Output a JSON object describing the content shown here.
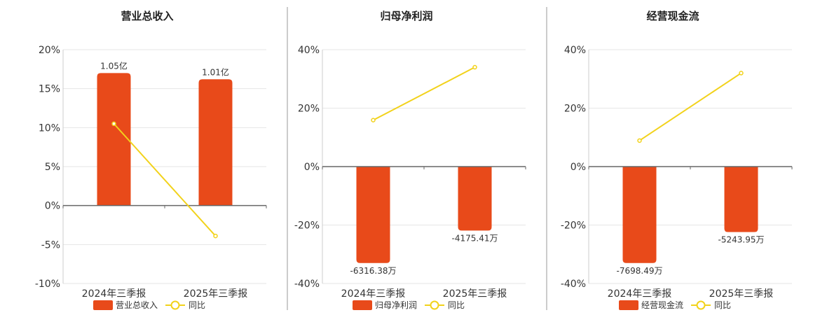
{
  "colors": {
    "bar": "#E84A1A",
    "line": "#F2D21B",
    "grid": "#e6e6e6",
    "axis": "#666666",
    "divider": "#999999"
  },
  "legend_line_label": "同比",
  "chart_data": [
    {
      "type": "bar",
      "title": "营业总收入",
      "categories": [
        "2024年三季报",
        "2025年三季报"
      ],
      "ylim": [
        -10,
        20
      ],
      "yticks": [
        20,
        15,
        10,
        5,
        0,
        -5,
        -10
      ],
      "ytick_labels": [
        "20%",
        "15%",
        "10%",
        "5%",
        "0%",
        "-5%",
        "-10%"
      ],
      "series": [
        {
          "name": "营业总收入",
          "kind": "bar",
          "values": [
            17.0,
            16.2
          ],
          "labels": [
            "1.05亿",
            "1.01亿"
          ]
        },
        {
          "name": "同比",
          "kind": "line",
          "values": [
            10.5,
            -3.9
          ]
        }
      ],
      "legend": "bottom-center",
      "grid": true
    },
    {
      "type": "bar",
      "title": "归母净利润",
      "categories": [
        "2024年三季报",
        "2025年三季报"
      ],
      "ylim": [
        -40,
        40
      ],
      "yticks": [
        40,
        20,
        0,
        -20,
        -40
      ],
      "ytick_labels": [
        "40%",
        "20%",
        "0%",
        "-20%",
        "-40%"
      ],
      "series": [
        {
          "name": "归母净利润",
          "kind": "bar",
          "values": [
            -33.0,
            -21.9
          ],
          "labels": [
            "-6316.38万",
            "-4175.41万"
          ]
        },
        {
          "name": "同比",
          "kind": "line",
          "values": [
            15.9,
            34.0
          ]
        }
      ],
      "legend": "bottom-center",
      "grid": true
    },
    {
      "type": "bar",
      "title": "经营现金流",
      "categories": [
        "2024年三季报",
        "2025年三季报"
      ],
      "ylim": [
        -40,
        40
      ],
      "yticks": [
        40,
        20,
        0,
        -20,
        -40
      ],
      "ytick_labels": [
        "40%",
        "20%",
        "0%",
        "-20%",
        "-40%"
      ],
      "series": [
        {
          "name": "经营现金流",
          "kind": "bar",
          "values": [
            -33.0,
            -22.4
          ],
          "labels": [
            "-7698.49万",
            "-5243.95万"
          ]
        },
        {
          "name": "同比",
          "kind": "line",
          "values": [
            8.9,
            32.0
          ]
        }
      ],
      "legend": "bottom-center",
      "grid": true
    }
  ]
}
